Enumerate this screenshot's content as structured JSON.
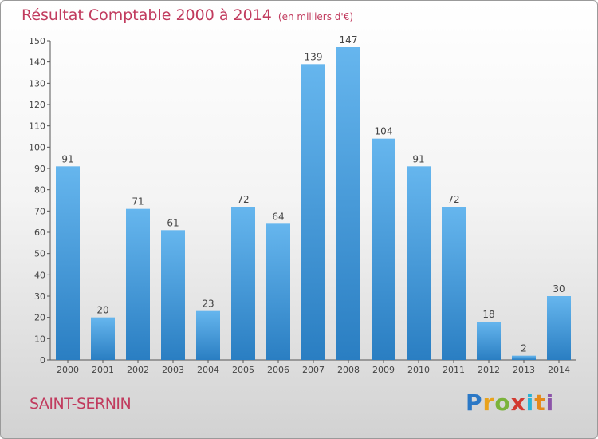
{
  "header": {
    "title": "Résultat Comptable 2000 à 2014",
    "unit": "(en milliers d'€)"
  },
  "footer": {
    "commune": "SAINT-SERNIN",
    "logo": {
      "p": "P",
      "r": "r",
      "o": "o",
      "x": "x",
      "i1": "i",
      "t": "t",
      "i2": "i"
    }
  },
  "colors": {
    "title": "#c13b5e",
    "bar_top": "#66b6ee",
    "bar_bottom": "#2a7ec2",
    "axis": "#555555"
  },
  "chart_data": {
    "type": "bar",
    "title": "Résultat Comptable 2000 à 2014",
    "subtitle": "(en milliers d'€)",
    "xlabel": "",
    "ylabel": "",
    "categories": [
      "2000",
      "2001",
      "2002",
      "2003",
      "2004",
      "2005",
      "2006",
      "2007",
      "2008",
      "2009",
      "2010",
      "2011",
      "2012",
      "2013",
      "2014"
    ],
    "values": [
      91,
      20,
      71,
      61,
      23,
      72,
      64,
      139,
      147,
      104,
      91,
      72,
      18,
      2,
      30
    ],
    "ylim": [
      0,
      150
    ],
    "yticks": [
      0,
      10,
      20,
      30,
      40,
      50,
      60,
      70,
      80,
      90,
      100,
      110,
      120,
      130,
      140,
      150
    ],
    "grid": false,
    "data_labels": true
  }
}
